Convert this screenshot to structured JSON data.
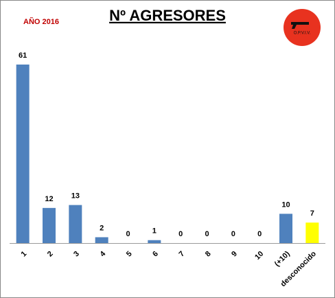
{
  "chart_data": {
    "type": "bar",
    "title": "Nº AGRESORES",
    "subtitle": "AÑO 2016",
    "logo_text": "O.P.V.I.V.",
    "categories": [
      "1",
      "2",
      "3",
      "4",
      "5",
      "6",
      "7",
      "8",
      "9",
      "10",
      "(+10)",
      "desconocido"
    ],
    "values": [
      61,
      12,
      13,
      2,
      0,
      1,
      0,
      0,
      0,
      0,
      10,
      7
    ],
    "colors": [
      "#4f81bd",
      "#4f81bd",
      "#4f81bd",
      "#4f81bd",
      "#4f81bd",
      "#4f81bd",
      "#4f81bd",
      "#4f81bd",
      "#4f81bd",
      "#4f81bd",
      "#4f81bd",
      "#ffff00"
    ]
  }
}
